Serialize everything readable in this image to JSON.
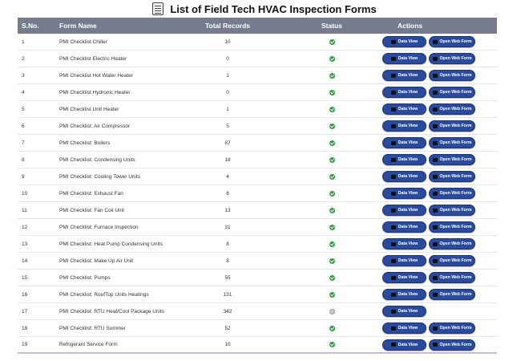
{
  "page": {
    "title": "List of Field Tech HVAC Inspection Forms"
  },
  "headers": {
    "sno": "S.No.",
    "name": "Form Name",
    "records": "Total Records",
    "status": "Status",
    "actions": "Actions"
  },
  "buttons": {
    "view": "Data View",
    "open": "Open Web Form"
  },
  "rows": [
    {
      "sno": "1",
      "name": "PMI Checklist Chiller",
      "records": "10",
      "status": "ok",
      "open": true
    },
    {
      "sno": "2",
      "name": "PMI Checklist Electric Heater",
      "records": "0",
      "status": "ok",
      "open": true
    },
    {
      "sno": "3",
      "name": "PMI Checklist Hot Water Heater",
      "records": "1",
      "status": "ok",
      "open": true
    },
    {
      "sno": "4",
      "name": "PMI Checklist Hydronic Heater",
      "records": "0",
      "status": "ok",
      "open": true
    },
    {
      "sno": "5",
      "name": "PMI Checklist Unit Heater",
      "records": "1",
      "status": "ok",
      "open": true
    },
    {
      "sno": "6",
      "name": "PMI Checklist: Air Compressor",
      "records": "5",
      "status": "ok",
      "open": true
    },
    {
      "sno": "7",
      "name": "PMI Checklist: Boilers",
      "records": "87",
      "status": "ok",
      "open": true
    },
    {
      "sno": "8",
      "name": "PMI Checklist: Condensing Units",
      "records": "18",
      "status": "ok",
      "open": true
    },
    {
      "sno": "9",
      "name": "PMI Checklist: Cooling Tower Units",
      "records": "4",
      "status": "ok",
      "open": true
    },
    {
      "sno": "10",
      "name": "PMI Checklist: Exhaust Fan",
      "records": "8",
      "status": "ok",
      "open": true
    },
    {
      "sno": "11",
      "name": "PMI Checklist: Fan Coil Unit",
      "records": "13",
      "status": "ok",
      "open": true
    },
    {
      "sno": "12",
      "name": "PMI Checklist: Furnace Inspection",
      "records": "31",
      "status": "ok",
      "open": true
    },
    {
      "sno": "13",
      "name": "PMI Checklist: Heat Pump Condensing Units",
      "records": "8",
      "status": "ok",
      "open": true
    },
    {
      "sno": "14",
      "name": "PMI Checklist: Make Up Air Unit",
      "records": "8",
      "status": "ok",
      "open": true
    },
    {
      "sno": "15",
      "name": "PMI Checklist: Pumps",
      "records": "55",
      "status": "ok",
      "open": true
    },
    {
      "sno": "16",
      "name": "PMI Checklist: RoofTop Units Heatings",
      "records": "131",
      "status": "ok",
      "open": true
    },
    {
      "sno": "17",
      "name": "PMI Checklist: RTU Heat/Cool Package Units",
      "records": "342",
      "status": "pending",
      "open": false
    },
    {
      "sno": "18",
      "name": "PMI Checklist: RTU Summer",
      "records": "52",
      "status": "ok",
      "open": true
    },
    {
      "sno": "19",
      "name": "Refrigerant Service Form",
      "records": "10",
      "status": "ok",
      "open": true
    }
  ]
}
